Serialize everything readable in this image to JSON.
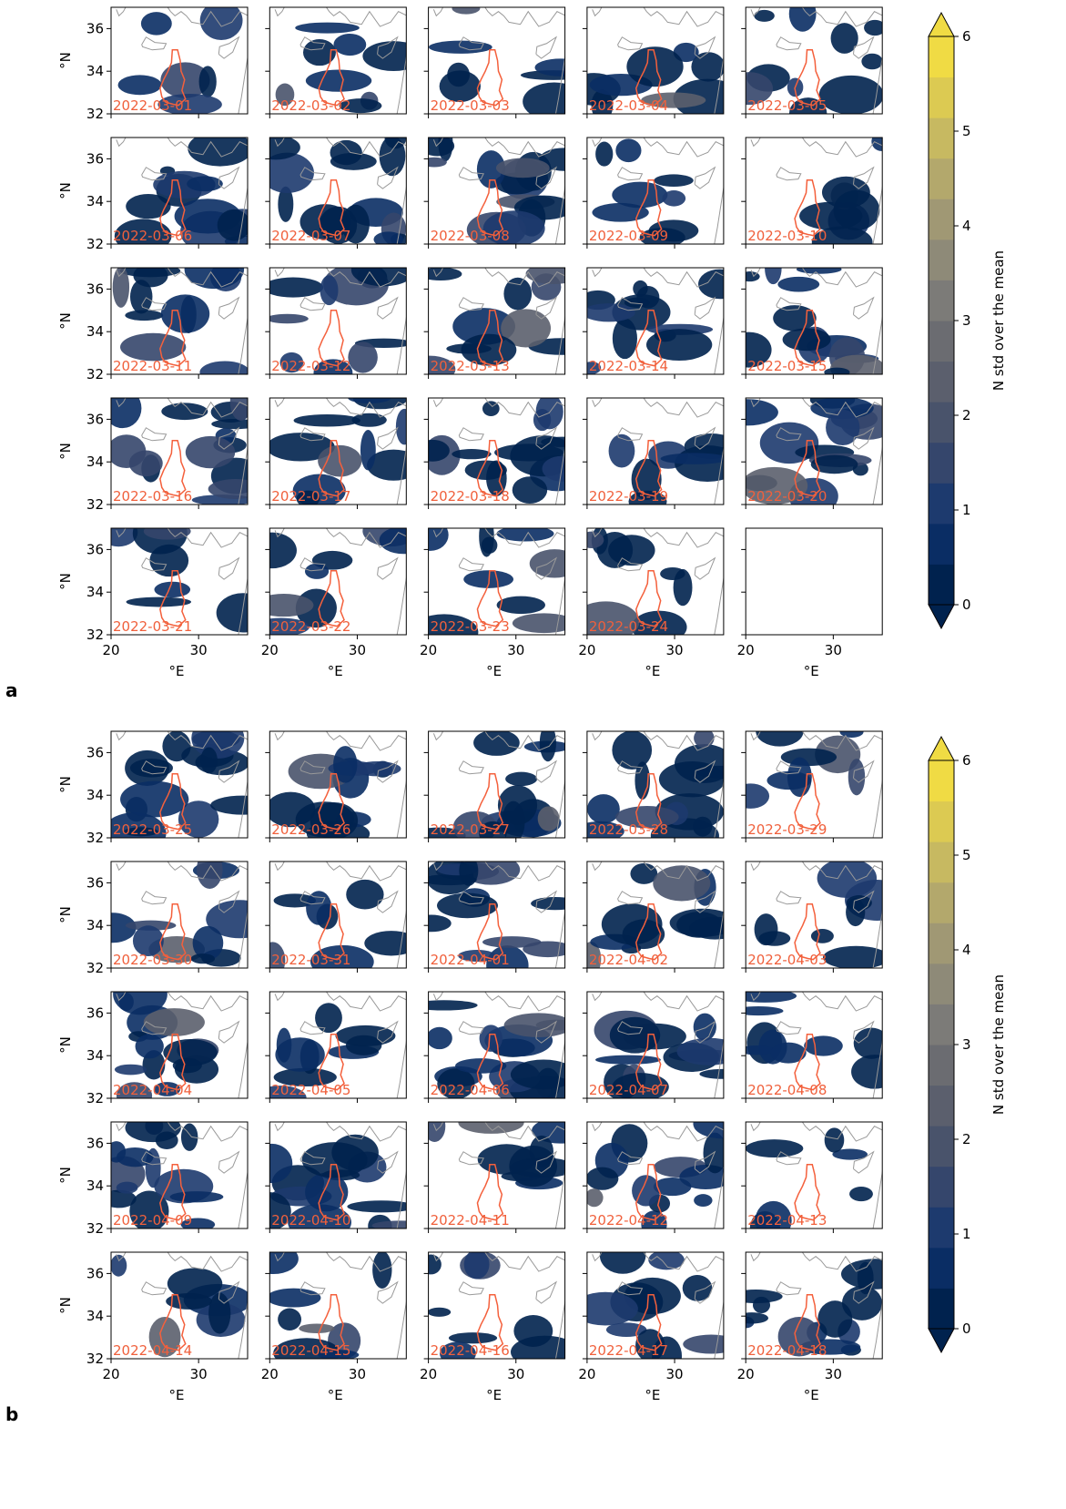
{
  "chart_data": [
    {
      "type": "map",
      "label": "a",
      "dates": [
        "2022-03-01",
        "2022-03-02",
        "2022-03-03",
        "2022-03-04",
        "2022-03-05",
        "2022-03-06",
        "2022-03-07",
        "2022-03-08",
        "2022-03-09",
        "2022-03-10",
        "2022-03-11",
        "2022-03-12",
        "2022-03-13",
        "2022-03-14",
        "2022-03-15",
        "2022-03-16",
        "2022-03-17",
        "2022-03-18",
        "2022-03-19",
        "2022-03-20",
        "2022-03-21",
        "2022-03-22",
        "2022-03-23",
        "2022-03-24",
        null
      ],
      "xlim": [
        20,
        35.6
      ],
      "ylim": [
        32,
        37
      ],
      "xticks": [
        20,
        30
      ],
      "yticks": [
        32,
        34,
        36
      ],
      "xlabel": "°E",
      "ylabel": "°N",
      "colorbar_label": "N std over the mean",
      "colorbar_lim": [
        0,
        6
      ],
      "colorbar_ticks": [
        0,
        1,
        2,
        3,
        4,
        5,
        6
      ],
      "colormap": [
        "#00224e",
        "#0a2d64",
        "#1d3a6e",
        "#35466c",
        "#49536b",
        "#5b5f6d",
        "#6b6c71",
        "#7c7b78",
        "#8e8a78",
        "#a09874",
        "#b3a86c",
        "#c7b961",
        "#dcca52",
        "#f0db44"
      ]
    },
    {
      "type": "map",
      "label": "b",
      "dates": [
        "2022-03-25",
        "2022-03-26",
        "2022-03-27",
        "2022-03-28",
        "2022-03-29",
        "2022-03-30",
        "2022-03-31",
        "2022-04-01",
        "2022-04-02",
        "2022-04-03",
        "2022-04-04",
        "2022-04-05",
        "2022-04-06",
        "2022-04-07",
        "2022-04-08",
        "2022-04-09",
        "2022-04-10",
        "2022-04-11",
        "2022-04-12",
        "2022-04-13",
        "2022-04-14",
        "2022-04-15",
        "2022-04-16",
        "2022-04-17",
        "2022-04-18"
      ],
      "xlim": [
        20,
        35.6
      ],
      "ylim": [
        32,
        37
      ],
      "xticks": [
        20,
        30
      ],
      "yticks": [
        32,
        34,
        36
      ],
      "xlabel": "°E",
      "ylabel": "°N",
      "colorbar_label": "N std over the mean",
      "colorbar_lim": [
        0,
        6
      ],
      "colorbar_ticks": [
        0,
        1,
        2,
        3,
        4,
        5,
        6
      ],
      "colormap": [
        "#00224e",
        "#0a2d64",
        "#1d3a6e",
        "#35466c",
        "#49536b",
        "#5b5f6d",
        "#6b6c71",
        "#7c7b78",
        "#8e8a78",
        "#a09874",
        "#b3a86c",
        "#c7b961",
        "#dcca52",
        "#f0db44"
      ]
    }
  ]
}
